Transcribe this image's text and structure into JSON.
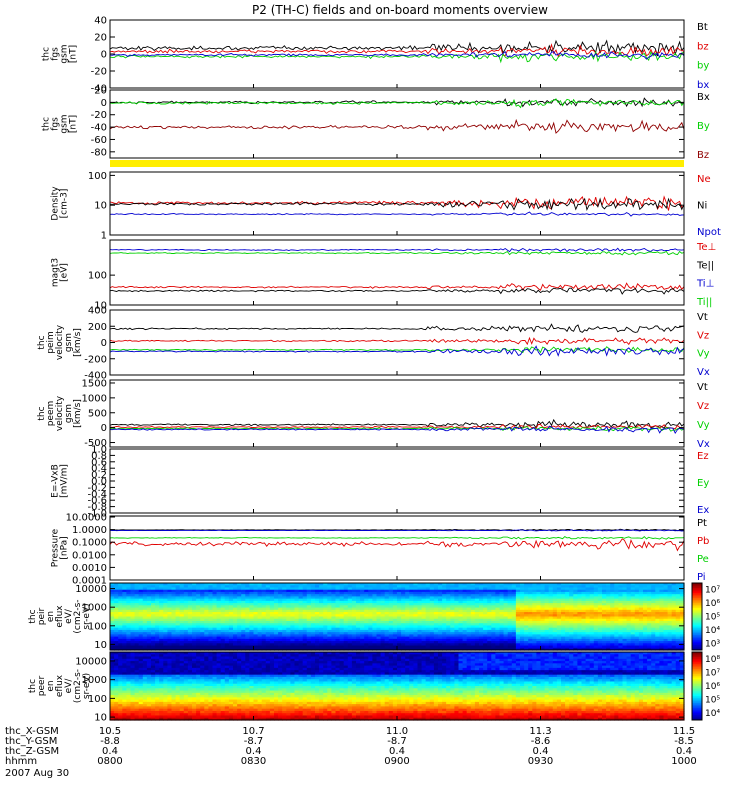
{
  "chart_data": {
    "type": "line",
    "title": "P2 (TH-C) fields and on-board moments overview",
    "date_label": "2007 Aug 30",
    "footer": {
      "rows": [
        {
          "label": "thc_X-GSM",
          "values": [
            "10.5",
            "10.7",
            "11.0",
            "11.3",
            "11.5"
          ]
        },
        {
          "label": "thc_Y-GSM",
          "values": [
            "-8.8",
            "-8.7",
            "-8.7",
            "-8.6",
            "-8.5"
          ]
        },
        {
          "label": "thc_Z-GSM",
          "values": [
            "0.4",
            "0.4",
            "0.4",
            "0.4",
            "0.4"
          ]
        },
        {
          "label": "hhmm",
          "values": [
            "0800",
            "0830",
            "0900",
            "0930",
            "1000"
          ]
        }
      ]
    },
    "panels": [
      {
        "id": "fgs",
        "ylabel": [
          "thc",
          "fgs",
          "gsm",
          "[nT]"
        ],
        "scale": "linear",
        "ylim": [
          -40,
          40
        ],
        "ticks": [
          "40",
          "20",
          "0",
          "-20",
          "-40"
        ],
        "tick_values": [
          40,
          20,
          0,
          -20,
          -40
        ],
        "series": [
          {
            "name": "Bt",
            "color": "#000000",
            "base": 7,
            "noise": 4,
            "storm": 9
          },
          {
            "name": "bz",
            "color": "#e00000",
            "base": 3,
            "noise": 3,
            "storm": 7
          },
          {
            "name": "by",
            "color": "#00d000",
            "base": -3,
            "noise": 2.5,
            "storm": 6
          },
          {
            "name": "bx",
            "color": "#0000d0",
            "base": -1,
            "noise": 2,
            "storm": 4
          }
        ]
      },
      {
        "id": "fgs-gse",
        "ylabel": [
          "thc",
          "fgs",
          "gsm",
          "[nT]"
        ],
        "scale": "linear",
        "ylim": [
          -90,
          20
        ],
        "ticks": [
          "20",
          "0",
          "-20",
          "-40",
          "-60",
          "-80"
        ],
        "tick_values": [
          20,
          0,
          -20,
          -40,
          -60,
          -80
        ],
        "series": [
          {
            "name": "Bx",
            "color": "#000000",
            "base": 0,
            "noise": 3,
            "storm": 7
          },
          {
            "name": "By",
            "color": "#00d000",
            "base": -1,
            "noise": 3,
            "storm": 7
          },
          {
            "name": "Bz",
            "color": "#900000",
            "base": -40,
            "noise": 4,
            "storm": 10
          }
        ]
      },
      {
        "id": "density",
        "ylabel": [
          "Density",
          "[cm-3]"
        ],
        "scale": "log",
        "ylim": [
          1,
          130
        ],
        "ticks": [
          "100",
          "10",
          "1"
        ],
        "tick_values": [
          100,
          10,
          1
        ],
        "series": [
          {
            "name": "Ne",
            "color": "#e00000",
            "base": 12,
            "noise": 0.08,
            "storm": 0.3
          },
          {
            "name": "Ni",
            "color": "#000000",
            "base": 11,
            "noise": 0.07,
            "storm": 0.25
          },
          {
            "name": "Npot",
            "color": "#0000d0",
            "base": 5,
            "noise": 0.03,
            "storm": 0.05
          }
        ]
      },
      {
        "id": "temp",
        "ylabel": [
          "magt3",
          "[eV]"
        ],
        "scale": "log",
        "ylim": [
          10,
          1500
        ],
        "ticks": [
          "100",
          "10"
        ],
        "tick_values": [
          100,
          10
        ],
        "series": [
          {
            "name": "Te⊥",
            "color": "#e00000",
            "base": 40,
            "noise": 0.04,
            "storm": 0.12
          },
          {
            "name": "Te||",
            "color": "#000000",
            "base": 30,
            "noise": 0.04,
            "storm": 0.12
          },
          {
            "name": "Ti⊥",
            "color": "#0000d0",
            "base": 700,
            "noise": 0.03,
            "storm": 0.06
          },
          {
            "name": "Ti||",
            "color": "#00d000",
            "base": 550,
            "noise": 0.03,
            "storm": 0.06
          }
        ]
      },
      {
        "id": "peim",
        "ylabel": [
          "thc",
          "peim",
          "velocity",
          "gsm",
          "[km/s]"
        ],
        "scale": "linear",
        "ylim": [
          -400,
          400
        ],
        "ticks": [
          "400",
          "200",
          "0",
          "-200",
          "-400"
        ],
        "tick_values": [
          400,
          200,
          0,
          -200,
          -400
        ],
        "series": [
          {
            "name": "Vt",
            "color": "#000000",
            "base": 170,
            "noise": 15,
            "storm": 60
          },
          {
            "name": "Vz",
            "color": "#e00000",
            "base": 20,
            "noise": 15,
            "storm": 50
          },
          {
            "name": "Vy",
            "color": "#00d000",
            "base": -90,
            "noise": 12,
            "storm": 50
          },
          {
            "name": "Vx",
            "color": "#0000d0",
            "base": -110,
            "noise": 12,
            "storm": 70
          }
        ]
      },
      {
        "id": "peem",
        "ylabel": [
          "thc",
          "peem",
          "velocity",
          "gsm",
          "[km/s]"
        ],
        "scale": "linear",
        "ylim": [
          -650,
          1600
        ],
        "ticks": [
          "1500",
          "1000",
          "500",
          "0",
          "-500"
        ],
        "tick_values": [
          1500,
          1000,
          500,
          0,
          -500
        ],
        "series": [
          {
            "name": "Vt",
            "color": "#000000",
            "base": 100,
            "noise": 45,
            "storm": 150
          },
          {
            "name": "Vz",
            "color": "#e00000",
            "base": 20,
            "noise": 35,
            "storm": 90
          },
          {
            "name": "Vy",
            "color": "#00d000",
            "base": -30,
            "noise": 35,
            "storm": 90
          },
          {
            "name": "Vx",
            "color": "#0000d0",
            "base": -60,
            "noise": 35,
            "storm": 150
          }
        ]
      },
      {
        "id": "efield",
        "ylabel": [
          "E=-VxB",
          "[mV/m]"
        ],
        "scale": "linear",
        "ylim": [
          -1,
          1
        ],
        "ticks": [
          "1.0",
          "0.8",
          "0.6",
          "0.4",
          "0.2",
          "0.0",
          "-0.2",
          "-0.4",
          "-0.6",
          "-0.8",
          "-1.0"
        ],
        "tick_values": [
          1.0,
          0.8,
          0.6,
          0.4,
          0.2,
          0.0,
          -0.2,
          -0.4,
          -0.6,
          -0.8,
          -1.0
        ],
        "series": [
          {
            "name": "Ez",
            "color": "#e00000",
            "empty": true
          },
          {
            "name": "Ey",
            "color": "#00d000",
            "empty": true
          },
          {
            "name": "Ex",
            "color": "#0000d0",
            "empty": true
          }
        ]
      },
      {
        "id": "pressure",
        "ylabel": [
          "Pressure",
          "[nPa]"
        ],
        "scale": "log",
        "ylim": [
          0.0001,
          12
        ],
        "ticks": [
          "10.0000",
          "1.0000",
          "0.1000",
          "0.0100",
          "0.0010",
          "0.0001"
        ],
        "tick_values": [
          10,
          1,
          0.1,
          0.01,
          0.001,
          0.0001
        ],
        "series": [
          {
            "name": "Pt",
            "color": "#000000",
            "base": 0.95,
            "noise": 0.03,
            "storm": 0.06
          },
          {
            "name": "Pb",
            "color": "#e00000",
            "base": 0.07,
            "noise": 0.25,
            "storm": 0.35
          },
          {
            "name": "Pe",
            "color": "#00d000",
            "base": 0.22,
            "noise": 0.05,
            "storm": 0.08
          },
          {
            "name": "Pi",
            "color": "#0000d0",
            "base": 0.85,
            "noise": 0.02,
            "storm": 0.05
          }
        ]
      },
      {
        "id": "peir",
        "type": "heatmap",
        "ylabel": [
          "thc",
          "peir",
          "en",
          "eflux",
          "eV/",
          "(cm2-s-",
          "sr-eV)"
        ],
        "scale": "log",
        "ylim": [
          5,
          20000
        ],
        "ticks": [
          "10000",
          "1000",
          "100",
          "10"
        ],
        "tick_values": [
          10000,
          1000,
          100,
          10
        ],
        "colorbar_ticks": [
          "10⁷",
          "10⁶",
          "10⁵",
          "10⁴",
          "10³"
        ],
        "colorbar_exponents": [
          7,
          6,
          5,
          4,
          3
        ],
        "colorbar_range": [
          2.5,
          7.5
        ]
      },
      {
        "id": "peer",
        "type": "heatmap",
        "ylabel": [
          "thc",
          "peer",
          "en",
          "eflux",
          "eV/",
          "(cm2-s-",
          "sr-eV)"
        ],
        "scale": "log",
        "ylim": [
          7,
          30000
        ],
        "ticks": [
          "10000",
          "1000",
          "100",
          "10"
        ],
        "tick_values": [
          10000,
          1000,
          100,
          10
        ],
        "colorbar_ticks": [
          "10⁸",
          "10⁷",
          "10⁶",
          "10⁵",
          "10⁴"
        ],
        "colorbar_exponents": [
          8,
          7,
          6,
          5,
          4
        ],
        "colorbar_range": [
          3.5,
          8.5
        ]
      }
    ]
  }
}
